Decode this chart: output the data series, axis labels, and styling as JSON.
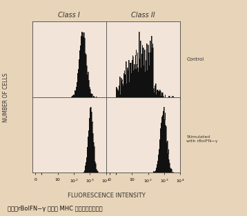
{
  "outer_bg": "#e8d4b8",
  "inner_bg": "#f5e8e0",
  "panel_bg": "#f2e4d8",
  "hist_color": "#111111",
  "col_titles": [
    "Class I",
    "Class II"
  ],
  "row_labels_right": [
    "Control",
    "Stimulated\nwith rBoIFN−γ"
  ],
  "xlabel": "FLUORESCENCE INTENSITY",
  "ylabel": "NUMBER OF CELLS",
  "caption": "図３：rBoIFN−γ による MHC 抗原の発現の増強",
  "figsize": [
    3.58,
    3.13
  ],
  "dpi": 100
}
